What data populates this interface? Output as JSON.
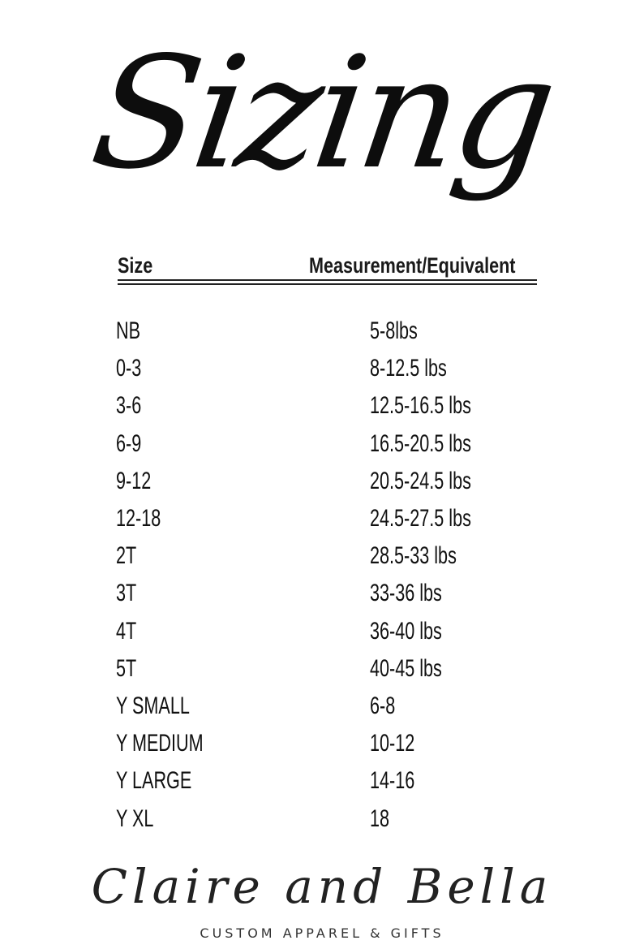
{
  "title": "Sizing",
  "table": {
    "headers": [
      "Size",
      "Measurement/Equivalent"
    ],
    "rows": [
      [
        "NB",
        "5-8lbs"
      ],
      [
        "0-3",
        "8-12.5 lbs"
      ],
      [
        "3-6",
        "12.5-16.5 lbs"
      ],
      [
        "6-9",
        "16.5-20.5 lbs"
      ],
      [
        "9-12",
        "20.5-24.5 lbs"
      ],
      [
        "12-18",
        "24.5-27.5 lbs"
      ],
      [
        "2T",
        "28.5-33 lbs"
      ],
      [
        "3T",
        "33-36 lbs"
      ],
      [
        "4T",
        "36-40 lbs"
      ],
      [
        "5T",
        "40-45 lbs"
      ],
      [
        "Y SMALL",
        "6-8"
      ],
      [
        "Y MEDIUM",
        "10-12"
      ],
      [
        "Y LARGE",
        "14-16"
      ],
      [
        "Y XL",
        "18"
      ]
    ]
  },
  "brand": {
    "name": "Claire and Bella",
    "tagline": "CUSTOM APPAREL & GIFTS"
  }
}
